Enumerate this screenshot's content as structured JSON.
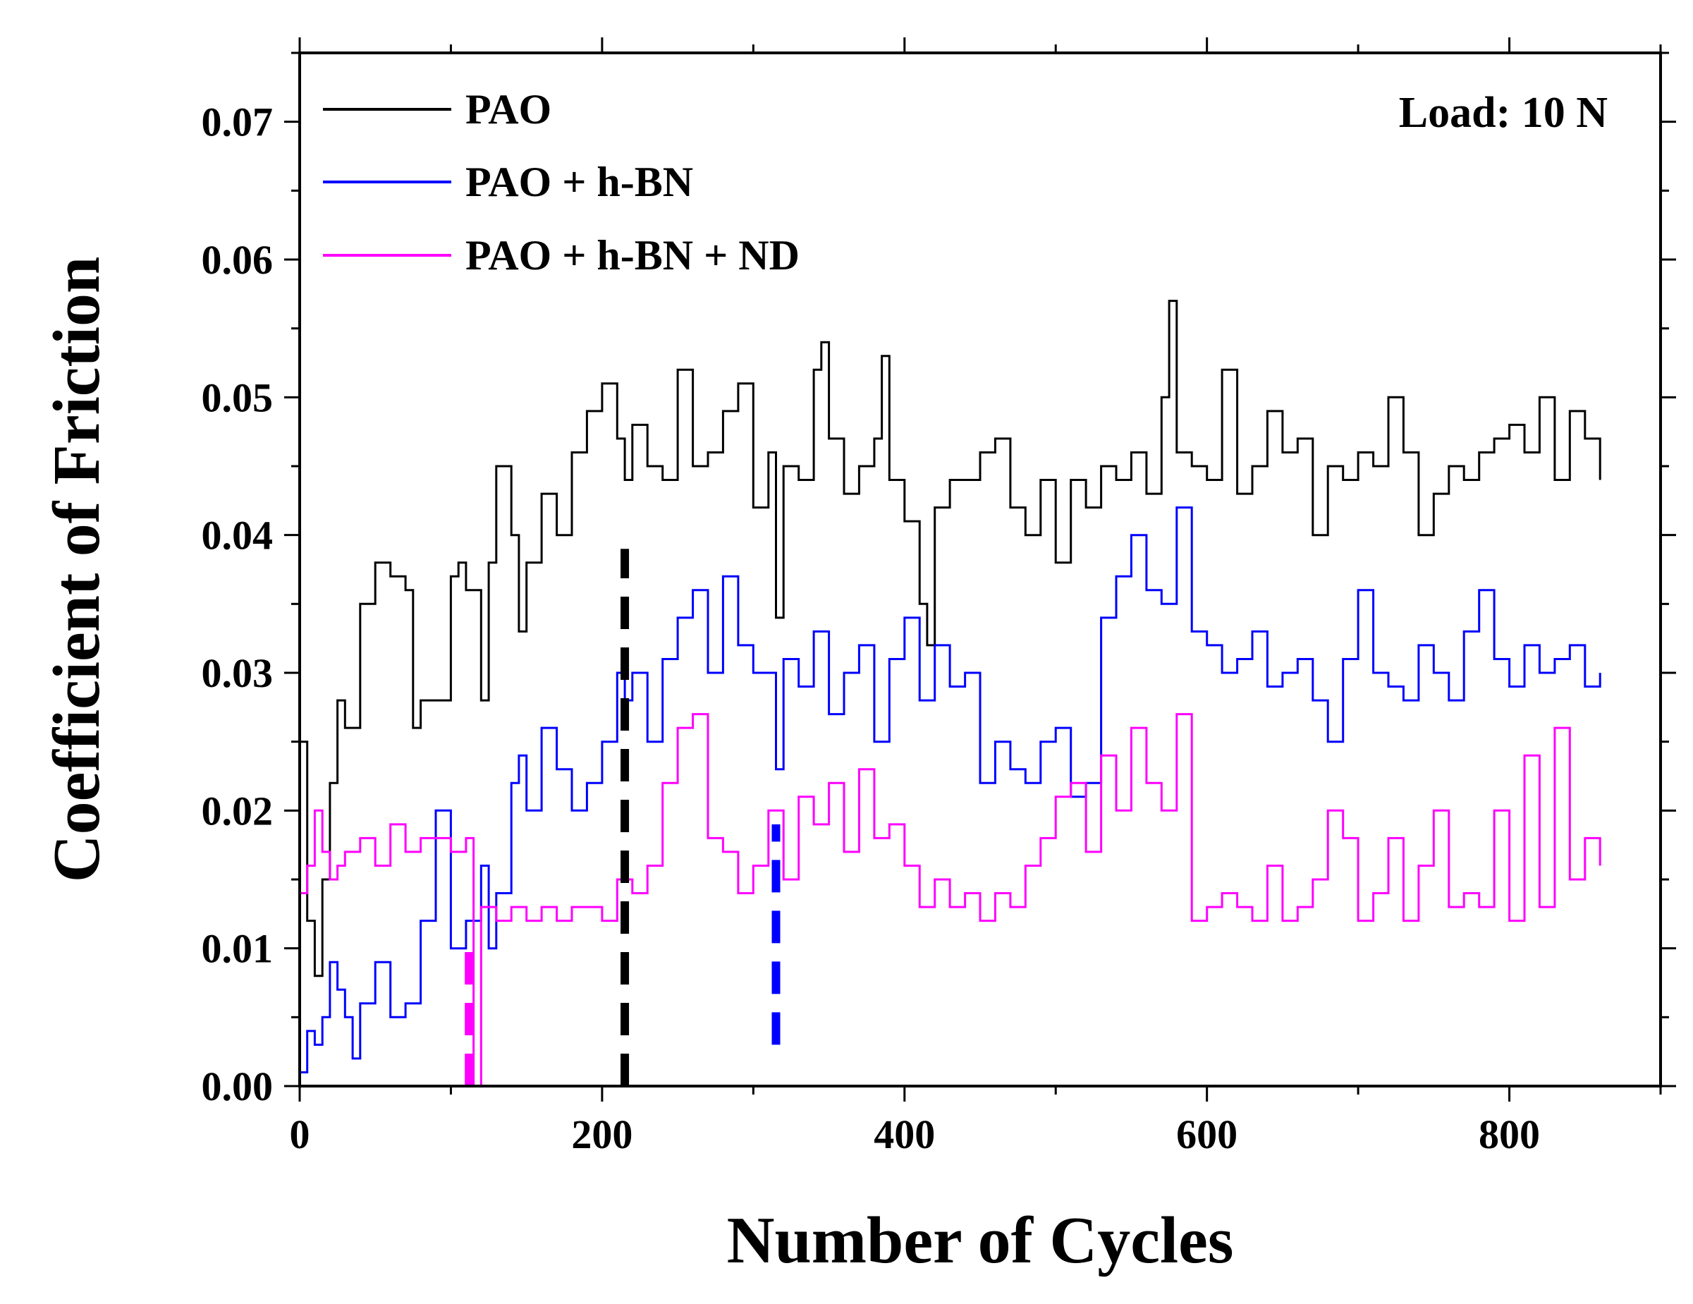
{
  "chart_data": {
    "type": "line",
    "title": "",
    "xlabel": "Number of Cycles",
    "ylabel": "Coefficient of Friction",
    "xlim": [
      0,
      900
    ],
    "ylim": [
      0,
      0.075
    ],
    "xticks": [
      0,
      200,
      400,
      600,
      800
    ],
    "xtick_labels": [
      "0",
      "200",
      "400",
      "600",
      "800"
    ],
    "yticks": [
      0,
      0.01,
      0.02,
      0.03,
      0.04,
      0.05,
      0.06,
      0.07
    ],
    "ytick_labels": [
      "0.00",
      "0.01",
      "0.02",
      "0.03",
      "0.04",
      "0.05",
      "0.06",
      "0.07"
    ],
    "grid": false,
    "legend_position": "top-left",
    "annotation": "Load: 10 N",
    "series": [
      {
        "name": "PAO",
        "color": "#000000",
        "x": [
          0,
          5,
          10,
          15,
          20,
          25,
          30,
          40,
          50,
          60,
          70,
          75,
          80,
          90,
          100,
          105,
          110,
          120,
          125,
          130,
          140,
          145,
          150,
          160,
          170,
          180,
          190,
          200,
          210,
          215,
          220,
          230,
          240,
          250,
          260,
          270,
          280,
          290,
          300,
          310,
          315,
          320,
          330,
          340,
          345,
          350,
          360,
          370,
          380,
          385,
          390,
          400,
          410,
          415,
          420,
          430,
          440,
          450,
          460,
          470,
          480,
          490,
          500,
          510,
          520,
          530,
          540,
          550,
          560,
          570,
          575,
          580,
          590,
          600,
          610,
          620,
          630,
          640,
          650,
          660,
          670,
          680,
          690,
          700,
          710,
          720,
          730,
          740,
          750,
          760,
          770,
          780,
          790,
          800,
          810,
          820,
          830,
          840,
          850,
          860
        ],
        "y": [
          0.025,
          0.012,
          0.008,
          0.015,
          0.022,
          0.028,
          0.026,
          0.035,
          0.038,
          0.037,
          0.036,
          0.026,
          0.028,
          0.028,
          0.037,
          0.038,
          0.036,
          0.028,
          0.038,
          0.045,
          0.04,
          0.033,
          0.038,
          0.043,
          0.04,
          0.046,
          0.049,
          0.051,
          0.047,
          0.044,
          0.048,
          0.045,
          0.044,
          0.052,
          0.045,
          0.046,
          0.049,
          0.051,
          0.042,
          0.046,
          0.034,
          0.045,
          0.044,
          0.052,
          0.054,
          0.047,
          0.043,
          0.045,
          0.047,
          0.053,
          0.044,
          0.041,
          0.035,
          0.032,
          0.042,
          0.044,
          0.044,
          0.046,
          0.047,
          0.042,
          0.04,
          0.044,
          0.038,
          0.044,
          0.042,
          0.045,
          0.044,
          0.046,
          0.043,
          0.05,
          0.057,
          0.046,
          0.045,
          0.044,
          0.052,
          0.043,
          0.045,
          0.049,
          0.046,
          0.047,
          0.04,
          0.045,
          0.044,
          0.046,
          0.045,
          0.05,
          0.046,
          0.04,
          0.043,
          0.045,
          0.044,
          0.046,
          0.047,
          0.048,
          0.046,
          0.05,
          0.044,
          0.049,
          0.047,
          0.044
        ]
      },
      {
        "name": "PAO + h-BN",
        "color": "#0000ff",
        "x": [
          0,
          5,
          10,
          15,
          20,
          25,
          30,
          35,
          40,
          50,
          60,
          70,
          80,
          90,
          100,
          110,
          120,
          125,
          130,
          140,
          145,
          150,
          160,
          170,
          180,
          190,
          200,
          210,
          215,
          220,
          230,
          240,
          250,
          260,
          270,
          280,
          290,
          300,
          310,
          315,
          320,
          330,
          340,
          350,
          360,
          370,
          380,
          390,
          400,
          410,
          420,
          430,
          440,
          450,
          460,
          470,
          480,
          490,
          500,
          510,
          520,
          530,
          540,
          550,
          560,
          570,
          580,
          590,
          600,
          610,
          620,
          630,
          640,
          650,
          660,
          670,
          680,
          690,
          700,
          710,
          720,
          730,
          740,
          750,
          760,
          770,
          780,
          790,
          800,
          810,
          820,
          830,
          840,
          850,
          860
        ],
        "y": [
          0.001,
          0.004,
          0.003,
          0.005,
          0.009,
          0.007,
          0.005,
          0.002,
          0.006,
          0.009,
          0.005,
          0.006,
          0.012,
          0.02,
          0.01,
          0.012,
          0.016,
          0.01,
          0.014,
          0.022,
          0.024,
          0.02,
          0.026,
          0.023,
          0.02,
          0.022,
          0.025,
          0.03,
          0.028,
          0.03,
          0.025,
          0.031,
          0.034,
          0.036,
          0.03,
          0.037,
          0.032,
          0.03,
          0.03,
          0.023,
          0.031,
          0.029,
          0.033,
          0.027,
          0.03,
          0.032,
          0.025,
          0.031,
          0.034,
          0.028,
          0.032,
          0.029,
          0.03,
          0.022,
          0.025,
          0.023,
          0.022,
          0.025,
          0.026,
          0.021,
          0.022,
          0.034,
          0.037,
          0.04,
          0.036,
          0.035,
          0.042,
          0.033,
          0.032,
          0.03,
          0.031,
          0.033,
          0.029,
          0.03,
          0.031,
          0.028,
          0.025,
          0.031,
          0.036,
          0.03,
          0.029,
          0.028,
          0.032,
          0.03,
          0.028,
          0.033,
          0.036,
          0.031,
          0.029,
          0.032,
          0.03,
          0.031,
          0.032,
          0.029,
          0.03
        ]
      },
      {
        "name": "PAO + h-BN + ND",
        "color": "#ff00ff",
        "x": [
          0,
          5,
          10,
          15,
          20,
          25,
          30,
          40,
          50,
          60,
          70,
          80,
          90,
          100,
          110,
          115,
          120,
          125,
          130,
          140,
          150,
          160,
          170,
          180,
          190,
          200,
          210,
          220,
          230,
          240,
          250,
          260,
          270,
          280,
          290,
          300,
          310,
          320,
          330,
          340,
          350,
          360,
          370,
          380,
          390,
          400,
          410,
          420,
          430,
          440,
          450,
          460,
          470,
          480,
          490,
          500,
          510,
          520,
          530,
          540,
          550,
          560,
          570,
          580,
          590,
          600,
          610,
          620,
          630,
          640,
          650,
          660,
          670,
          680,
          690,
          700,
          710,
          720,
          730,
          740,
          750,
          760,
          770,
          780,
          790,
          800,
          810,
          820,
          830,
          840,
          850,
          860
        ],
        "y": [
          0.014,
          0.016,
          0.02,
          0.017,
          0.015,
          0.016,
          0.017,
          0.018,
          0.016,
          0.019,
          0.017,
          0.018,
          0.018,
          0.017,
          0.018,
          0.0,
          0.013,
          0.013,
          0.012,
          0.013,
          0.012,
          0.013,
          0.012,
          0.013,
          0.013,
          0.012,
          0.015,
          0.014,
          0.016,
          0.022,
          0.026,
          0.027,
          0.018,
          0.017,
          0.014,
          0.016,
          0.02,
          0.015,
          0.021,
          0.019,
          0.022,
          0.017,
          0.023,
          0.018,
          0.019,
          0.016,
          0.013,
          0.015,
          0.013,
          0.014,
          0.012,
          0.014,
          0.013,
          0.016,
          0.018,
          0.021,
          0.022,
          0.017,
          0.024,
          0.02,
          0.026,
          0.022,
          0.02,
          0.027,
          0.012,
          0.013,
          0.014,
          0.013,
          0.012,
          0.016,
          0.012,
          0.013,
          0.015,
          0.02,
          0.018,
          0.012,
          0.014,
          0.018,
          0.012,
          0.016,
          0.02,
          0.013,
          0.014,
          0.013,
          0.02,
          0.012,
          0.024,
          0.013,
          0.026,
          0.015,
          0.018,
          0.016
        ]
      }
    ],
    "markers": [
      {
        "series": "PAO",
        "x": 215,
        "y_from": 0.0,
        "y_to": 0.039,
        "color": "#000000"
      },
      {
        "series": "PAO + h-BN",
        "x": 315,
        "y_from": 0.003,
        "y_to": 0.019,
        "color": "#0000ff"
      },
      {
        "series": "PAO + h-BN + ND",
        "x": 112,
        "y_from": 0.0,
        "y_to": 0.011,
        "color": "#ff00ff"
      }
    ]
  }
}
